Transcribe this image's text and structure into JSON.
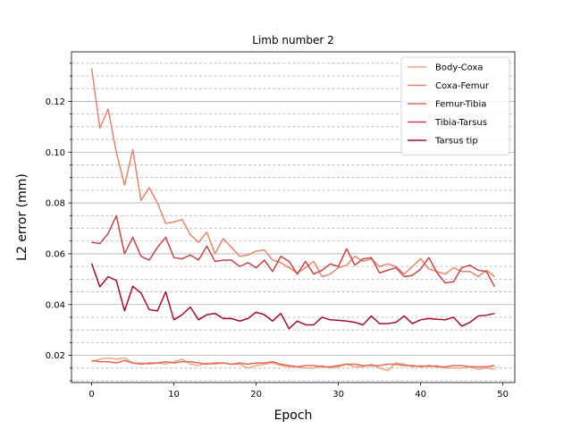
{
  "chart_data": {
    "type": "line",
    "title": "Limb number 2",
    "xlabel": "Epoch",
    "ylabel": "L2 error (mm)",
    "xlim": [
      -2.45,
      51.45
    ],
    "ylim": [
      0.0093,
      0.1395
    ],
    "x_ticks": [
      0,
      10,
      20,
      30,
      40,
      50
    ],
    "y_ticks": [
      0.02,
      0.04,
      0.06,
      0.08,
      0.1,
      0.12
    ],
    "grid": "horizontal major solid, minor dashed",
    "legend_position": "top-right",
    "x": [
      0,
      1,
      2,
      3,
      4,
      5,
      6,
      7,
      8,
      9,
      10,
      11,
      12,
      13,
      14,
      15,
      16,
      17,
      18,
      19,
      20,
      21,
      22,
      23,
      24,
      25,
      26,
      27,
      28,
      29,
      30,
      31,
      32,
      33,
      34,
      35,
      36,
      37,
      38,
      39,
      40,
      41,
      42,
      43,
      44,
      45,
      46,
      47,
      48,
      49
    ],
    "series": [
      {
        "name": "Body-Coxa",
        "color": "#f4a582",
        "values": [
          0.0175,
          0.0185,
          0.019,
          0.0185,
          0.019,
          0.017,
          0.017,
          0.0165,
          0.017,
          0.0165,
          0.0175,
          0.0185,
          0.0165,
          0.016,
          0.017,
          0.0165,
          0.017,
          0.0165,
          0.0165,
          0.015,
          0.016,
          0.0165,
          0.017,
          0.016,
          0.0155,
          0.0155,
          0.015,
          0.015,
          0.016,
          0.015,
          0.0155,
          0.0165,
          0.0155,
          0.0155,
          0.0165,
          0.015,
          0.014,
          0.017,
          0.0165,
          0.0155,
          0.016,
          0.0155,
          0.016,
          0.015,
          0.015,
          0.015,
          0.0155,
          0.0145,
          0.015,
          0.0145
        ]
      },
      {
        "name": "Coxa-Femur",
        "color": "#e8856a",
        "values": [
          0.133,
          0.1095,
          0.117,
          0.1,
          0.087,
          0.101,
          0.081,
          0.086,
          0.08,
          0.072,
          0.0725,
          0.0735,
          0.0675,
          0.0645,
          0.0685,
          0.06,
          0.066,
          0.0625,
          0.059,
          0.0595,
          0.061,
          0.0615,
          0.0575,
          0.0565,
          0.0545,
          0.0525,
          0.0545,
          0.057,
          0.051,
          0.052,
          0.0545,
          0.0555,
          0.059,
          0.057,
          0.058,
          0.055,
          0.056,
          0.055,
          0.052,
          0.055,
          0.058,
          0.054,
          0.053,
          0.052,
          0.0545,
          0.053,
          0.053,
          0.051,
          0.0535,
          0.051
        ]
      },
      {
        "name": "Femur-Tibia",
        "color": "#e06a55",
        "values": [
          0.018,
          0.0175,
          0.0175,
          0.017,
          0.018,
          0.017,
          0.0165,
          0.017,
          0.017,
          0.0175,
          0.017,
          0.0175,
          0.0175,
          0.017,
          0.0165,
          0.017,
          0.017,
          0.0165,
          0.017,
          0.0165,
          0.017,
          0.017,
          0.0175,
          0.0165,
          0.016,
          0.0155,
          0.016,
          0.016,
          0.0155,
          0.0155,
          0.016,
          0.0165,
          0.0165,
          0.016,
          0.016,
          0.016,
          0.0165,
          0.0165,
          0.016,
          0.016,
          0.0155,
          0.016,
          0.0155,
          0.0155,
          0.016,
          0.016,
          0.0155,
          0.0155,
          0.0155,
          0.016
        ]
      },
      {
        "name": "Tibia-Tarsus",
        "color": "#cc4444",
        "values": [
          0.0645,
          0.064,
          0.068,
          0.075,
          0.06,
          0.0665,
          0.059,
          0.0575,
          0.0625,
          0.0665,
          0.0585,
          0.058,
          0.0595,
          0.0575,
          0.063,
          0.057,
          0.0575,
          0.0575,
          0.055,
          0.0565,
          0.0545,
          0.0575,
          0.053,
          0.059,
          0.057,
          0.052,
          0.057,
          0.052,
          0.0535,
          0.056,
          0.055,
          0.062,
          0.0555,
          0.058,
          0.0585,
          0.0525,
          0.0535,
          0.0545,
          0.051,
          0.0515,
          0.054,
          0.0585,
          0.0525,
          0.0485,
          0.049,
          0.0545,
          0.0555,
          0.0535,
          0.053,
          0.047
        ]
      },
      {
        "name": "Tarsus tip",
        "color": "#a50f2d",
        "values": [
          0.0562,
          0.047,
          0.051,
          0.0495,
          0.0375,
          0.0472,
          0.0445,
          0.038,
          0.0375,
          0.045,
          0.034,
          0.036,
          0.039,
          0.034,
          0.036,
          0.0365,
          0.0345,
          0.0345,
          0.0335,
          0.0345,
          0.037,
          0.036,
          0.0335,
          0.0365,
          0.0305,
          0.0335,
          0.032,
          0.032,
          0.035,
          0.034,
          0.0338,
          0.0335,
          0.033,
          0.032,
          0.0355,
          0.0325,
          0.0325,
          0.033,
          0.0355,
          0.0325,
          0.034,
          0.0345,
          0.0342,
          0.034,
          0.035,
          0.0315,
          0.033,
          0.0355,
          0.0358,
          0.0365
        ]
      }
    ]
  }
}
